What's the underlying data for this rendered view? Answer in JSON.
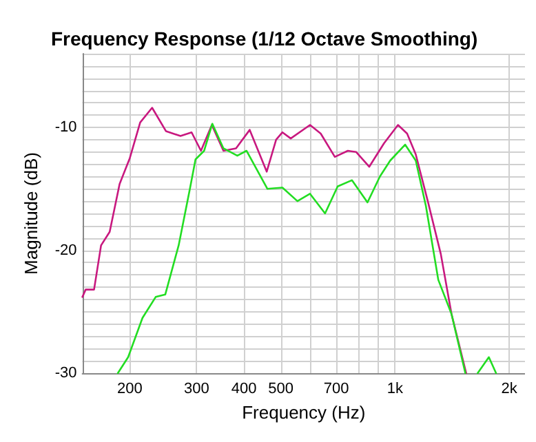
{
  "chart_data": {
    "type": "line",
    "title": "Frequency Response (1/12 Octave Smoothing)",
    "xlabel": "Frequency (Hz)",
    "ylabel": "Magnitude (dB)",
    "log": "x",
    "grid": true,
    "marker": "none",
    "line_style": "solid",
    "xlim": [
      150,
      2200
    ],
    "ylim": [
      -30,
      -4
    ],
    "xticks": [
      200,
      300,
      400,
      500,
      {
        "value": 600,
        "label": null
      },
      700,
      {
        "value": 800,
        "label": null
      },
      {
        "value": 900,
        "label": null
      },
      {
        "value": 1000,
        "label": "1k"
      },
      {
        "value": 2000,
        "label": "2k"
      }
    ],
    "yticks": [
      -30,
      {
        "value": -29,
        "label": null
      },
      {
        "value": -28,
        "label": null
      },
      {
        "value": -27,
        "label": null
      },
      {
        "value": -26,
        "label": null
      },
      {
        "value": -25,
        "label": null
      },
      {
        "value": -24,
        "label": null
      },
      {
        "value": -23,
        "label": null
      },
      {
        "value": -22,
        "label": null
      },
      {
        "value": -21,
        "label": null
      },
      -20,
      {
        "value": -19,
        "label": null
      },
      {
        "value": -18,
        "label": null
      },
      {
        "value": -17,
        "label": null
      },
      {
        "value": -16,
        "label": null
      },
      {
        "value": -15,
        "label": null
      },
      {
        "value": -14,
        "label": null
      },
      {
        "value": -13,
        "label": null
      },
      {
        "value": -12,
        "label": null
      },
      {
        "value": -11,
        "label": null
      },
      -10,
      {
        "value": -9,
        "label": null
      },
      {
        "value": -8,
        "label": null
      },
      {
        "value": -7,
        "label": null
      },
      {
        "value": -6,
        "label": null
      },
      {
        "value": -5,
        "label": null
      },
      {
        "value": -4,
        "label": null
      }
    ],
    "series": [
      {
        "color": "#c8187f",
        "x": [
          150,
          153,
          161,
          168,
          177,
          188,
          200,
          213,
          229,
          249,
          272,
          291,
          308,
          329,
          353,
          381,
          414,
          459,
          486,
          505,
          531,
          597,
          637,
          694,
          751,
          790,
          855,
          935,
          1018,
          1076,
          1134,
          1222,
          1320,
          1409,
          1540
        ],
        "values": [
          -23.8,
          -23.2,
          -23.2,
          -19.6,
          -18.5,
          -14.6,
          -12.5,
          -9.6,
          -8.4,
          -10.3,
          -10.7,
          -10.4,
          -11.9,
          -9.8,
          -11.9,
          -11.7,
          -10.2,
          -13.6,
          -11.0,
          -10.4,
          -10.9,
          -9.8,
          -10.5,
          -12.4,
          -11.9,
          -12.0,
          -13.2,
          -11.3,
          -9.8,
          -10.5,
          -12.2,
          -16.1,
          -20.3,
          -25.2,
          -30
        ]
      },
      {
        "color": "#22dd22",
        "x": [
          186,
          198,
          216,
          234,
          248,
          269,
          288,
          298,
          314,
          330,
          353,
          384,
          406,
          461,
          505,
          553,
          597,
          654,
          706,
          770,
          846,
          912,
          971,
          1063,
          1134,
          1206,
          1300,
          1409,
          1532,
          1600,
          1651,
          1767,
          1846
        ],
        "values": [
          -30,
          -28.7,
          -25.5,
          -23.8,
          -23.6,
          -19.6,
          -15.0,
          -12.6,
          -11.9,
          -9.7,
          -11.7,
          -12.3,
          -11.9,
          -15.0,
          -14.9,
          -16.0,
          -15.4,
          -17.0,
          -14.8,
          -14.3,
          -16.1,
          -14.0,
          -12.7,
          -11.4,
          -12.7,
          -16.4,
          -22.4,
          -25.2,
          -30,
          null,
          -30,
          -28.7,
          -30
        ]
      }
    ]
  }
}
